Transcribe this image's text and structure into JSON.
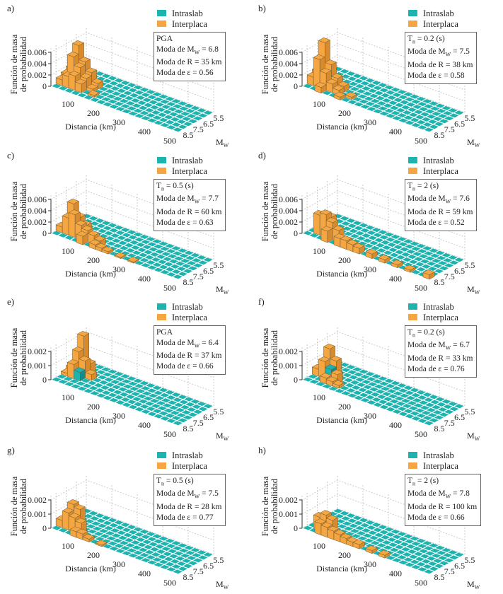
{
  "legend": {
    "intraslab": "Intraslab",
    "interplaca": "Interplaca"
  },
  "colors": {
    "intraslab": "#1db3ae",
    "interplaca": "#f5a640",
    "interplaca_side": "#d88a2c",
    "intraslab_side": "#148c88"
  },
  "y_label": [
    "Función de masa",
    "de probabilidad"
  ],
  "x_label": "Distancia (km)",
  "m_label": {
    "main": "M",
    "sub": "W"
  },
  "chart_data": [
    {
      "type": "bar3d",
      "panel": "a)",
      "zlim": [
        0,
        0.006
      ],
      "zticks": [
        "0",
        "0.002",
        "0.004",
        "0.006"
      ],
      "xticks": [
        "100",
        "200",
        "300",
        "400",
        "500"
      ],
      "mticks": [
        "5.5",
        "6.5",
        "7.5",
        "8.5"
      ],
      "info": [
        {
          "main": "PGA",
          "sub": "",
          "rest": ""
        },
        {
          "main": "Moda de M",
          "sub": "W",
          "rest": " = 6.8"
        },
        {
          "main": "Moda de R = 35 km",
          "sub": "",
          "rest": ""
        },
        {
          "main": "Moda de ε = 0.56",
          "sub": "",
          "rest": ""
        }
      ],
      "bars": [
        [
          25,
          6.5,
          0.0065,
          "Interplaca"
        ],
        [
          25,
          7.0,
          0.005,
          "Interplaca"
        ],
        [
          50,
          6.5,
          0.004,
          "Interplaca"
        ],
        [
          0,
          6.5,
          0.002,
          "Interplaca"
        ],
        [
          25,
          6.0,
          0.003,
          "Interplaca"
        ],
        [
          50,
          7.0,
          0.0035,
          "Interplaca"
        ],
        [
          75,
          6.5,
          0.0025,
          "Interplaca"
        ],
        [
          0,
          7.0,
          0.0015,
          "Interplaca"
        ],
        [
          50,
          7.5,
          0.0025,
          "Interplaca"
        ],
        [
          75,
          7.0,
          0.002,
          "Interplaca"
        ],
        [
          25,
          7.5,
          0.002,
          "Interplaca"
        ],
        [
          100,
          6.5,
          0.001,
          "Interplaca"
        ],
        [
          0,
          7.5,
          0.001,
          "Interplaca"
        ],
        [
          75,
          7.5,
          0.0015,
          "Interplaca"
        ],
        [
          100,
          7.0,
          0.0005,
          "Interplaca"
        ],
        [
          125,
          7.5,
          0.0003,
          "Interplaca"
        ]
      ]
    },
    {
      "type": "bar3d",
      "panel": "b)",
      "zlim": [
        0,
        0.006
      ],
      "zticks": [
        "0",
        "0.002",
        "0.004",
        "0.006"
      ],
      "xticks": [
        "100",
        "200",
        "300",
        "400",
        "500"
      ],
      "mticks": [
        "5.5",
        "6.5",
        "7.5",
        "8.5"
      ],
      "info": [
        {
          "main": "T",
          "sub": "n",
          "rest": " = 0.2 (s)"
        },
        {
          "main": "Moda de M",
          "sub": "W",
          "rest": " = 7.5"
        },
        {
          "main": "Moda de R = 38 km",
          "sub": "",
          "rest": ""
        },
        {
          "main": "Moda de ε = 0.58",
          "sub": "",
          "rest": ""
        }
      ],
      "bars": [
        [
          25,
          7.0,
          0.0075,
          "Interplaca"
        ],
        [
          25,
          7.5,
          0.005,
          "Interplaca"
        ],
        [
          50,
          7.0,
          0.004,
          "Interplaca"
        ],
        [
          0,
          7.0,
          0.002,
          "Interplaca"
        ],
        [
          25,
          6.5,
          0.003,
          "Interplaca"
        ],
        [
          50,
          7.5,
          0.003,
          "Interplaca"
        ],
        [
          75,
          7.0,
          0.002,
          "Interplaca"
        ],
        [
          0,
          7.5,
          0.0015,
          "Interplaca"
        ],
        [
          75,
          7.5,
          0.0015,
          "Interplaca"
        ],
        [
          50,
          8.0,
          0.001,
          "Interplaca"
        ],
        [
          100,
          7.0,
          0.001,
          "Interplaca"
        ],
        [
          100,
          7.5,
          0.0008,
          "Interplaca"
        ],
        [
          125,
          8.0,
          0.0005,
          "Interplaca"
        ],
        [
          150,
          7.5,
          0.0004,
          "Interplaca"
        ]
      ]
    },
    {
      "type": "bar3d",
      "panel": "c)",
      "zlim": [
        0,
        0.006
      ],
      "zticks": [
        "0",
        "0.002",
        "0.004",
        "0.006"
      ],
      "xticks": [
        "100",
        "200",
        "300",
        "400",
        "500"
      ],
      "mticks": [
        "5.5",
        "6.5",
        "7.5",
        "8.5"
      ],
      "info": [
        {
          "main": "T",
          "sub": "n",
          "rest": " = 0.5 (s)"
        },
        {
          "main": "Moda de M",
          "sub": "W",
          "rest": " = 7.7"
        },
        {
          "main": "Moda de R = 60 km",
          "sub": "",
          "rest": ""
        },
        {
          "main": "Moda de ε = 0.63",
          "sub": "",
          "rest": ""
        }
      ],
      "bars": [
        [
          25,
          7.0,
          0.005,
          "Interplaca"
        ],
        [
          50,
          7.5,
          0.004,
          "Interplaca"
        ],
        [
          25,
          7.5,
          0.003,
          "Interplaca"
        ],
        [
          50,
          7.0,
          0.003,
          "Interplaca"
        ],
        [
          75,
          7.5,
          0.0025,
          "Interplaca"
        ],
        [
          75,
          7.0,
          0.002,
          "Interplaca"
        ],
        [
          100,
          7.5,
          0.002,
          "Interplaca"
        ],
        [
          0,
          7.5,
          0.001,
          "Interplaca"
        ],
        [
          100,
          8.0,
          0.0015,
          "Interplaca"
        ],
        [
          125,
          7.5,
          0.0015,
          "Interplaca"
        ],
        [
          150,
          7.5,
          0.001,
          "Interplaca"
        ],
        [
          150,
          8.0,
          0.0008,
          "Interplaca"
        ],
        [
          175,
          8.0,
          0.0006,
          "Interplaca"
        ],
        [
          200,
          8.0,
          0.0004,
          "Interplaca"
        ],
        [
          250,
          8.0,
          0.0002,
          "Interplaca"
        ],
        [
          300,
          8.0,
          0.0002,
          "Interplaca"
        ]
      ]
    },
    {
      "type": "bar3d",
      "panel": "d)",
      "zlim": [
        0,
        0.006
      ],
      "zticks": [
        "0",
        "0.002",
        "0.004",
        "0.006"
      ],
      "xticks": [
        "100",
        "200",
        "300",
        "400",
        "500"
      ],
      "mticks": [
        "5.5",
        "6.5",
        "7.5",
        "8.5"
      ],
      "info": [
        {
          "main": "T",
          "sub": "n",
          "rest": " = 2 (s)"
        },
        {
          "main": "Moda de M",
          "sub": "W",
          "rest": " = 7.6"
        },
        {
          "main": "Moda de R = 59 km",
          "sub": "",
          "rest": ""
        },
        {
          "main": "Moda de ε = 0.52",
          "sub": "",
          "rest": ""
        }
      ],
      "bars": [
        [
          25,
          7.5,
          0.0035,
          "Interplaca"
        ],
        [
          50,
          7.5,
          0.004,
          "Interplaca"
        ],
        [
          50,
          7.0,
          0.003,
          "Interplaca"
        ],
        [
          75,
          7.5,
          0.003,
          "Interplaca"
        ],
        [
          25,
          7.0,
          0.002,
          "Interplaca"
        ],
        [
          75,
          8.0,
          0.002,
          "Interplaca"
        ],
        [
          100,
          7.5,
          0.002,
          "Interplaca"
        ],
        [
          125,
          8.0,
          0.0015,
          "Interplaca"
        ],
        [
          150,
          8.0,
          0.0015,
          "Interplaca"
        ],
        [
          175,
          8.0,
          0.0012,
          "Interplaca"
        ],
        [
          200,
          8.0,
          0.001,
          "Interplaca"
        ],
        [
          250,
          8.0,
          0.0008,
          "Interplaca"
        ],
        [
          300,
          8.0,
          0.0006,
          "Interplaca"
        ],
        [
          350,
          8.0,
          0.0005,
          "Interplaca"
        ],
        [
          400,
          8.0,
          0.0004,
          "Interplaca"
        ],
        [
          475,
          8.0,
          0.0008,
          "Interplaca"
        ]
      ]
    },
    {
      "type": "bar3d",
      "panel": "e)",
      "zlim": [
        0,
        0.002
      ],
      "zticks": [
        "0",
        "0.001",
        "0.002"
      ],
      "xticks": [
        "100",
        "200",
        "300",
        "400",
        "500"
      ],
      "mticks": [
        "5.5",
        "6.5",
        "7.5",
        "8.5"
      ],
      "info": [
        {
          "main": "PGA",
          "sub": "",
          "rest": ""
        },
        {
          "main": "Moda de M",
          "sub": "W",
          "rest": " = 6.4"
        },
        {
          "main": "Moda de R = 37 km",
          "sub": "",
          "rest": ""
        },
        {
          "main": "Moda de ε = 0.66",
          "sub": "",
          "rest": ""
        }
      ],
      "bars": [
        [
          25,
          6.0,
          0.0026,
          "Interplaca"
        ],
        [
          25,
          6.5,
          0.0017,
          "Interplaca"
        ],
        [
          50,
          6.5,
          0.0012,
          "Interplaca"
        ],
        [
          25,
          7.0,
          0.001,
          "Interplaca"
        ],
        [
          50,
          6.0,
          0.0008,
          "Interplaca"
        ],
        [
          50,
          7.0,
          0.0006,
          "Intraslab"
        ],
        [
          0,
          6.5,
          0.0004,
          "Interplaca"
        ],
        [
          75,
          6.5,
          0.0004,
          "Interplaca"
        ],
        [
          0,
          7.0,
          0.0002,
          "Interplaca"
        ]
      ]
    },
    {
      "type": "bar3d",
      "panel": "f)",
      "zlim": [
        0,
        0.002
      ],
      "zticks": [
        "0",
        "0.001",
        "0.002"
      ],
      "xticks": [
        "100",
        "200",
        "300",
        "400",
        "500"
      ],
      "mticks": [
        "5.5",
        "6.5",
        "7.5",
        "8.5"
      ],
      "info": [
        {
          "main": "T",
          "sub": "n",
          "rest": " = 0.2 (s)"
        },
        {
          "main": "Moda de M",
          "sub": "W",
          "rest": " = 6.7"
        },
        {
          "main": "Moda de R = 33 km",
          "sub": "",
          "rest": ""
        },
        {
          "main": "Moda de ε = 0.76",
          "sub": "",
          "rest": ""
        }
      ],
      "bars": [
        [
          25,
          6.5,
          0.0019,
          "Interplaca"
        ],
        [
          25,
          7.0,
          0.0012,
          "Interplaca"
        ],
        [
          50,
          6.5,
          0.0012,
          "Interplaca"
        ],
        [
          50,
          7.0,
          0.0008,
          "Intraslab"
        ],
        [
          0,
          7.0,
          0.0005,
          "Interplaca"
        ],
        [
          75,
          7.0,
          0.0006,
          "Interplaca"
        ],
        [
          50,
          7.5,
          0.0004,
          "Interplaca"
        ],
        [
          75,
          7.5,
          0.0003,
          "Interplaca"
        ],
        [
          100,
          7.5,
          0.0002,
          "Interplaca"
        ]
      ]
    },
    {
      "type": "bar3d",
      "panel": "g)",
      "zlim": [
        0,
        0.002
      ],
      "zticks": [
        "0",
        "0.001",
        "0.002"
      ],
      "xticks": [
        "100",
        "200",
        "300",
        "400",
        "500"
      ],
      "mticks": [
        "5.5",
        "6.5",
        "7.5",
        "8.5"
      ],
      "info": [
        {
          "main": "T",
          "sub": "n",
          "rest": " = 0.5 (s)"
        },
        {
          "main": "Moda de M",
          "sub": "W",
          "rest": " = 7.5"
        },
        {
          "main": "Moda de R = 28 km",
          "sub": "",
          "rest": ""
        },
        {
          "main": "Moda de ε = 0.77",
          "sub": "",
          "rest": ""
        }
      ],
      "bars": [
        [
          25,
          7.0,
          0.0016,
          "Interplaca"
        ],
        [
          25,
          7.5,
          0.0012,
          "Interplaca"
        ],
        [
          50,
          7.0,
          0.0014,
          "Interplaca"
        ],
        [
          50,
          7.5,
          0.001,
          "Interplaca"
        ],
        [
          75,
          7.5,
          0.0008,
          "Interplaca"
        ],
        [
          0,
          7.5,
          0.0005,
          "Interplaca"
        ],
        [
          100,
          8.0,
          0.0004,
          "Interplaca"
        ],
        [
          75,
          8.0,
          0.0004,
          "Interplaca"
        ],
        [
          125,
          8.0,
          0.0002,
          "Interplaca"
        ],
        [
          175,
          8.0,
          0.0001,
          "Interplaca"
        ]
      ]
    },
    {
      "type": "bar3d",
      "panel": "h)",
      "zlim": [
        0,
        0.002
      ],
      "zticks": [
        "0",
        "0.001",
        "0.002"
      ],
      "xticks": [
        "100",
        "200",
        "300",
        "400",
        "500"
      ],
      "mticks": [
        "5.5",
        "6.5",
        "7.5",
        "8.5"
      ],
      "info": [
        {
          "main": "T",
          "sub": "n",
          "rest": " = 2 (s)"
        },
        {
          "main": "Moda de M",
          "sub": "W",
          "rest": " = 7.8"
        },
        {
          "main": "Moda de R = 100 km",
          "sub": "",
          "rest": ""
        },
        {
          "main": "Moda de ε = 0.66",
          "sub": "",
          "rest": ""
        }
      ],
      "bars": [
        [
          25,
          7.5,
          0.0009,
          "Interplaca"
        ],
        [
          50,
          7.5,
          0.0012,
          "Interplaca"
        ],
        [
          50,
          8.0,
          0.0008,
          "Interplaca"
        ],
        [
          75,
          7.5,
          0.001,
          "Interplaca"
        ],
        [
          75,
          8.0,
          0.0007,
          "Interplaca"
        ],
        [
          100,
          8.0,
          0.0006,
          "Interplaca"
        ],
        [
          125,
          8.0,
          0.0005,
          "Interplaca"
        ],
        [
          150,
          8.0,
          0.0004,
          "Interplaca"
        ],
        [
          175,
          8.0,
          0.0003,
          "Interplaca"
        ],
        [
          200,
          8.0,
          0.0003,
          "Interplaca"
        ],
        [
          250,
          8.0,
          0.0002,
          "Interplaca"
        ],
        [
          300,
          8.0,
          0.0002,
          "Interplaca"
        ]
      ]
    }
  ]
}
